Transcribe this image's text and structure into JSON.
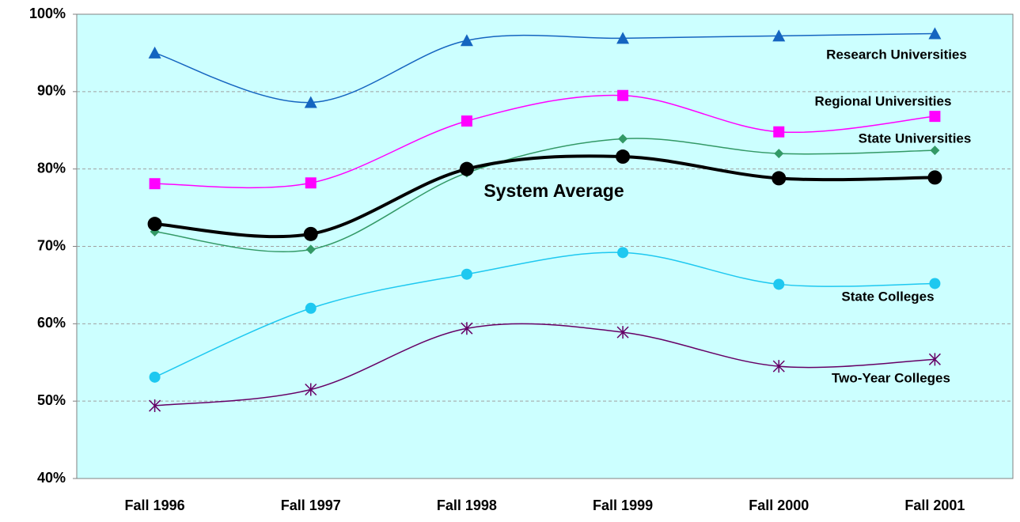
{
  "chart_data": {
    "type": "line",
    "categories": [
      "Fall 1996",
      "Fall 1997",
      "Fall 1998",
      "Fall 1999",
      "Fall 2000",
      "Fall 2001"
    ],
    "series": [
      {
        "name": "Research Universities",
        "color": "#1565c0",
        "marker": "triangle",
        "values": [
          95.0,
          88.6,
          96.6,
          96.9,
          97.2,
          97.5
        ]
      },
      {
        "name": "Regional Universities",
        "color": "#ff00ff",
        "marker": "square",
        "values": [
          78.1,
          78.2,
          86.2,
          89.5,
          84.8,
          86.8
        ]
      },
      {
        "name": "State Universities",
        "color": "#339966",
        "marker": "diamond",
        "values": [
          71.9,
          69.6,
          79.5,
          83.9,
          82.0,
          82.4
        ]
      },
      {
        "name": "System Average",
        "color": "#000000",
        "marker": "circle-large",
        "values": [
          72.9,
          71.6,
          80.0,
          81.6,
          78.8,
          78.9
        ]
      },
      {
        "name": "State Colleges",
        "color": "#1ec8f0",
        "marker": "circle",
        "values": [
          53.1,
          62.0,
          66.4,
          69.2,
          65.1,
          65.2
        ]
      },
      {
        "name": "Two-Year Colleges",
        "color": "#660066",
        "marker": "asterisk",
        "values": [
          49.4,
          51.5,
          59.4,
          58.9,
          54.5,
          55.4
        ]
      }
    ],
    "ylim": [
      40,
      100
    ],
    "yticks": [
      {
        "value": 40,
        "label": "40%"
      },
      {
        "value": 50,
        "label": "50%"
      },
      {
        "value": 60,
        "label": "60%"
      },
      {
        "value": 70,
        "label": "70%"
      },
      {
        "value": 80,
        "label": "80%"
      },
      {
        "value": 90,
        "label": "90%"
      },
      {
        "value": 100,
        "label": "100%"
      }
    ],
    "grid": true
  }
}
